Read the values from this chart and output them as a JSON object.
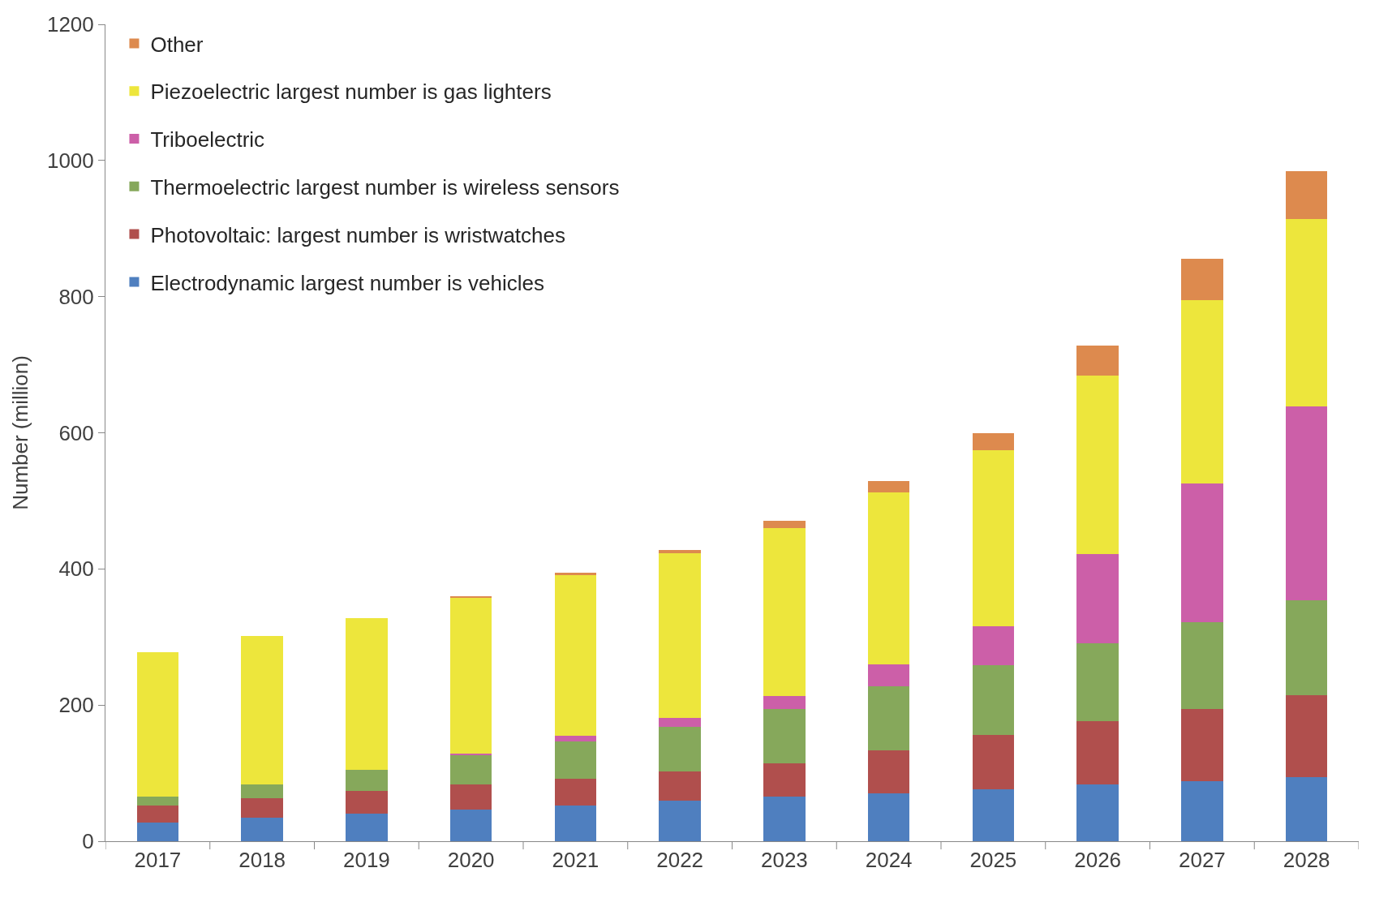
{
  "chart_data": {
    "type": "bar",
    "stacked": true,
    "ylabel": "Number (million)",
    "categories": [
      "2017",
      "2018",
      "2019",
      "2020",
      "2021",
      "2022",
      "2023",
      "2024",
      "2025",
      "2026",
      "2027",
      "2028"
    ],
    "series": [
      {
        "name": "Electrodynamic largest number is vehicles",
        "color": "#4f7fbf",
        "values": [
          28,
          34,
          40,
          47,
          52,
          59,
          65,
          70,
          76,
          83,
          88,
          94
        ]
      },
      {
        "name": "Photovoltaic: largest number is wristwatches",
        "color": "#b04f4d",
        "values": [
          25,
          29,
          34,
          36,
          40,
          43,
          50,
          64,
          80,
          93,
          106,
          121
        ]
      },
      {
        "name": "Thermoelectric largest number is wireless sensors",
        "color": "#86a85b",
        "values": [
          13,
          21,
          31,
          44,
          54,
          66,
          79,
          94,
          103,
          115,
          128,
          139
        ]
      },
      {
        "name": "Triboelectric",
        "color": "#cc5fa8",
        "values": [
          0,
          0,
          0,
          2,
          9,
          13,
          19,
          32,
          57,
          131,
          204,
          285
        ]
      },
      {
        "name": "Piezoelectric largest number is gas lighters",
        "color": "#ede63c",
        "values": [
          212,
          217,
          223,
          229,
          236,
          242,
          247,
          253,
          258,
          262,
          269,
          275
        ]
      },
      {
        "name": "Other",
        "color": "#dd8a4e",
        "values": [
          0,
          0,
          0,
          2,
          3,
          5,
          11,
          16,
          26,
          44,
          61,
          70
        ]
      }
    ],
    "ylim": [
      0,
      1200
    ],
    "yticks": [
      0,
      200,
      400,
      600,
      800,
      1000,
      1200
    ],
    "legend": "top left"
  }
}
